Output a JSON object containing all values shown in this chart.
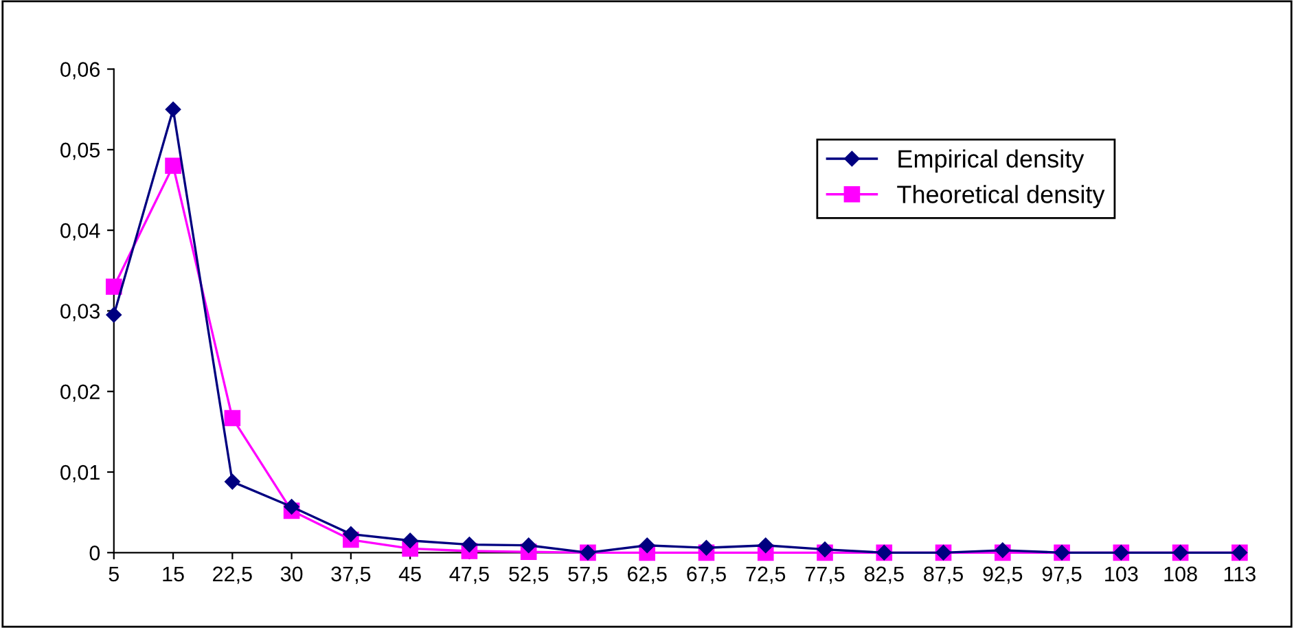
{
  "chart_data": {
    "type": "line",
    "categories": [
      "5",
      "15",
      "22,5",
      "30",
      "37,5",
      "45",
      "47,5",
      "52,5",
      "57,5",
      "62,5",
      "67,5",
      "72,5",
      "77,5",
      "82,5",
      "87,5",
      "92,5",
      "97,5",
      "103",
      "108",
      "113"
    ],
    "series": [
      {
        "name": "Empirical density",
        "color": "#000080",
        "marker": "diamond",
        "values": [
          0.0295,
          0.055,
          0.0088,
          0.0057,
          0.0023,
          0.0015,
          0.001,
          0.0009,
          0,
          0.0009,
          0.0006,
          0.0009,
          0.0004,
          0,
          0,
          0.0003,
          0,
          0,
          0,
          0
        ]
      },
      {
        "name": "Theoretical density",
        "color": "#ff00ff",
        "marker": "square",
        "values": [
          0.033,
          0.048,
          0.0167,
          0.0052,
          0.0016,
          0.0005,
          0.0002,
          0.0001,
          0,
          0,
          0,
          0,
          0,
          0,
          0,
          0,
          0,
          0,
          0,
          0
        ]
      }
    ],
    "ylim": [
      0,
      0.06
    ],
    "yticks": [
      0,
      {
        "value": 0.01,
        "label": "0,01"
      },
      {
        "value": 0.02,
        "label": "0,02"
      },
      {
        "value": 0.03,
        "label": "0,03"
      },
      {
        "value": 0.04,
        "label": "0,04"
      },
      {
        "value": 0.05,
        "label": "0,05"
      },
      {
        "value": 0.06,
        "label": "0,06"
      }
    ],
    "grid": false,
    "legend": "top right"
  }
}
